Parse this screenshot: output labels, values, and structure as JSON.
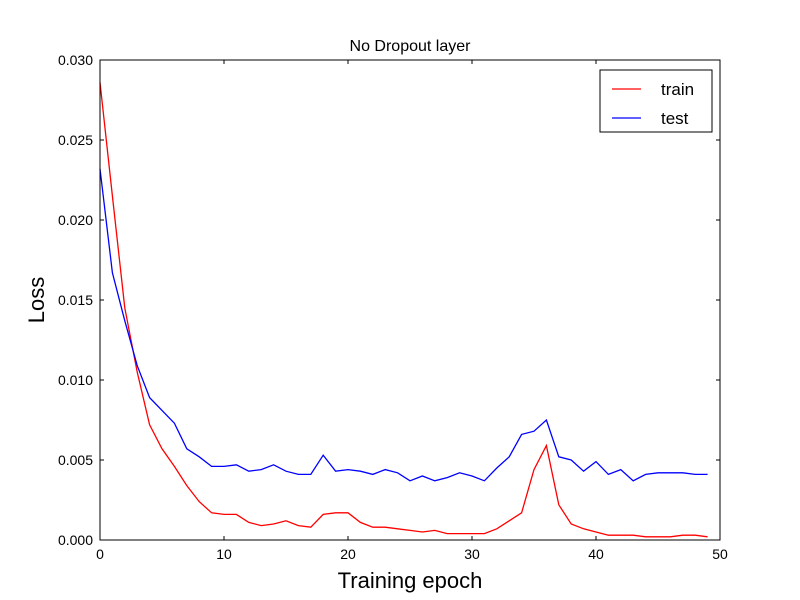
{
  "chart_data": {
    "type": "line",
    "title": "No Dropout layer",
    "xlabel": "Training epoch",
    "ylabel": "Loss",
    "xlim": [
      0,
      50
    ],
    "ylim": [
      0,
      0.03
    ],
    "x_ticks": [
      0,
      10,
      20,
      30,
      40,
      50
    ],
    "x_tick_labels": [
      "0",
      "10",
      "20",
      "30",
      "40",
      "50"
    ],
    "y_ticks": [
      0,
      0.005,
      0.01,
      0.015,
      0.02,
      0.025,
      0.03
    ],
    "y_tick_labels": [
      "0.000",
      "0.005",
      "0.010",
      "0.015",
      "0.020",
      "0.025",
      "0.030"
    ],
    "grid": false,
    "legend_position": "top-right",
    "x": [
      0,
      1,
      2,
      3,
      4,
      5,
      6,
      7,
      8,
      9,
      10,
      11,
      12,
      13,
      14,
      15,
      16,
      17,
      18,
      19,
      20,
      21,
      22,
      23,
      24,
      25,
      26,
      27,
      28,
      29,
      30,
      31,
      32,
      33,
      34,
      35,
      36,
      37,
      38,
      39,
      40,
      41,
      42,
      43,
      44,
      45,
      46,
      47,
      48,
      49
    ],
    "series": [
      {
        "name": "train",
        "color": "#ff0000",
        "values": [
          0.0286,
          0.0215,
          0.0145,
          0.0105,
          0.0072,
          0.0057,
          0.0046,
          0.0034,
          0.0024,
          0.0017,
          0.0016,
          0.0016,
          0.0011,
          0.0009,
          0.001,
          0.0012,
          0.0009,
          0.0008,
          0.0016,
          0.0017,
          0.0017,
          0.0011,
          0.0008,
          0.0008,
          0.0007,
          0.0006,
          0.0005,
          0.0006,
          0.0004,
          0.0004,
          0.0004,
          0.0004,
          0.0007,
          0.0012,
          0.0017,
          0.0044,
          0.0059,
          0.0022,
          0.001,
          0.0007,
          0.0005,
          0.0003,
          0.0003,
          0.0003,
          0.0002,
          0.0002,
          0.0002,
          0.0003,
          0.0003,
          0.0002
        ]
      },
      {
        "name": "test",
        "color": "#0000ff",
        "values": [
          0.0232,
          0.0167,
          0.0137,
          0.0109,
          0.0089,
          0.0081,
          0.0073,
          0.0057,
          0.0052,
          0.0046,
          0.0046,
          0.0047,
          0.0043,
          0.0044,
          0.0047,
          0.0043,
          0.0041,
          0.0041,
          0.0053,
          0.0043,
          0.0044,
          0.0043,
          0.0041,
          0.0044,
          0.0042,
          0.0037,
          0.004,
          0.0037,
          0.0039,
          0.0042,
          0.004,
          0.0037,
          0.0045,
          0.0052,
          0.0066,
          0.0068,
          0.0075,
          0.0052,
          0.005,
          0.0043,
          0.0049,
          0.0041,
          0.0044,
          0.0037,
          0.0041,
          0.0042,
          0.0042,
          0.0042,
          0.0041,
          0.0041
        ]
      }
    ]
  }
}
